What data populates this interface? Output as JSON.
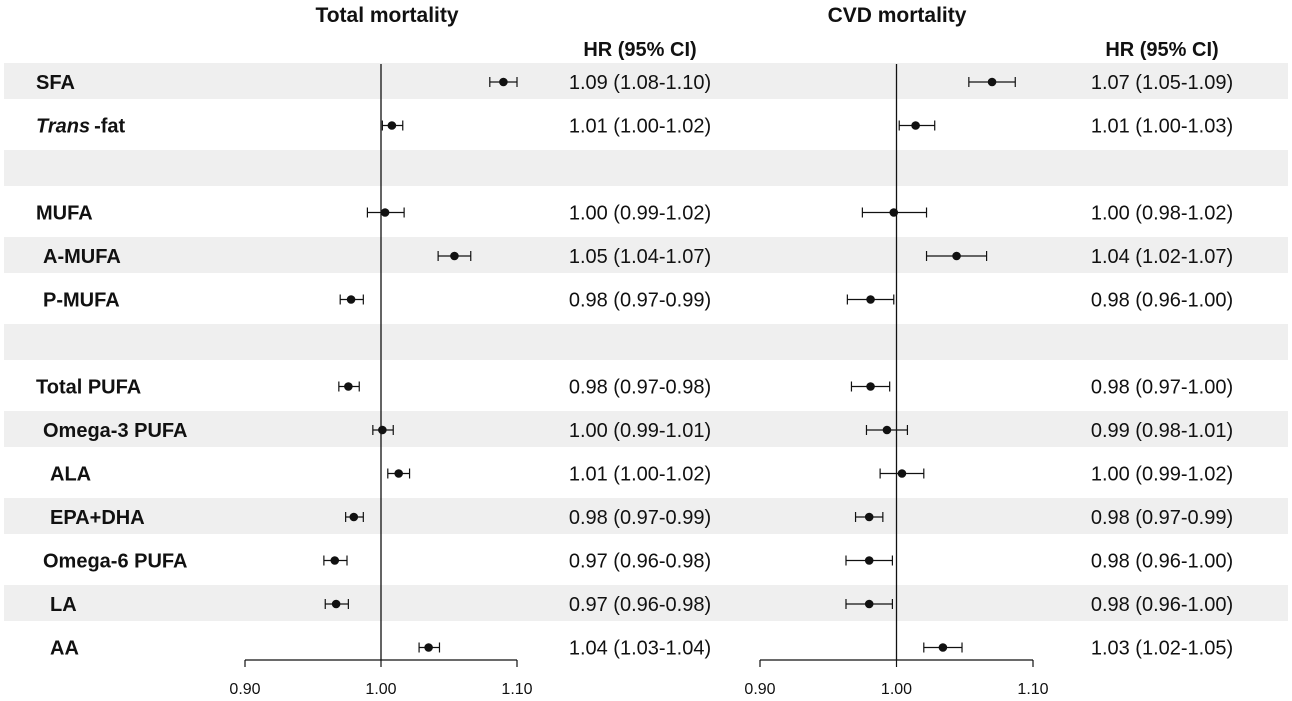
{
  "chart_data": [
    {
      "type": "forest",
      "title": "Total mortality",
      "value_header": "HR (95% CI)",
      "xlim": [
        0.9,
        1.1
      ],
      "xticks": [
        "0.90",
        "1.00",
        "1.10"
      ],
      "reference_line": 1.0,
      "points": [
        {
          "hr": 1.09,
          "lo": 1.08,
          "hi": 1.1,
          "text": "1.09 (1.08-1.10)"
        },
        {
          "hr": 1.008,
          "lo": 1.001,
          "hi": 1.016,
          "text": "1.01 (1.00-1.02)"
        },
        null,
        {
          "hr": 1.003,
          "lo": 0.99,
          "hi": 1.017,
          "text": "1.00 (0.99-1.02)"
        },
        {
          "hr": 1.054,
          "lo": 1.042,
          "hi": 1.066,
          "text": "1.05 (1.04-1.07)"
        },
        {
          "hr": 0.978,
          "lo": 0.97,
          "hi": 0.987,
          "text": "0.98 (0.97-0.99)"
        },
        null,
        {
          "hr": 0.976,
          "lo": 0.969,
          "hi": 0.984,
          "text": "0.98 (0.97-0.98)"
        },
        {
          "hr": 1.001,
          "lo": 0.994,
          "hi": 1.009,
          "text": "1.00 (0.99-1.01)"
        },
        {
          "hr": 1.013,
          "lo": 1.005,
          "hi": 1.021,
          "text": "1.01 (1.00-1.02)"
        },
        {
          "hr": 0.98,
          "lo": 0.974,
          "hi": 0.987,
          "text": "0.98 (0.97-0.99)"
        },
        {
          "hr": 0.966,
          "lo": 0.958,
          "hi": 0.975,
          "text": "0.97 (0.96-0.98)"
        },
        {
          "hr": 0.967,
          "lo": 0.959,
          "hi": 0.976,
          "text": "0.97 (0.96-0.98)"
        },
        {
          "hr": 1.035,
          "lo": 1.028,
          "hi": 1.043,
          "text": "1.04 (1.03-1.04)"
        }
      ]
    },
    {
      "type": "forest",
      "title": "CVD mortality",
      "value_header": "HR (95% CI)",
      "xlim": [
        0.9,
        1.1
      ],
      "xticks": [
        "0.90",
        "1.00",
        "1.10"
      ],
      "reference_line": 1.0,
      "points": [
        {
          "hr": 1.07,
          "lo": 1.053,
          "hi": 1.087,
          "text": "1.07 (1.05-1.09)"
        },
        {
          "hr": 1.014,
          "lo": 1.002,
          "hi": 1.028,
          "text": "1.01 (1.00-1.03)"
        },
        null,
        {
          "hr": 0.998,
          "lo": 0.975,
          "hi": 1.022,
          "text": "1.00 (0.98-1.02)"
        },
        {
          "hr": 1.044,
          "lo": 1.022,
          "hi": 1.066,
          "text": "1.04 (1.02-1.07)"
        },
        {
          "hr": 0.981,
          "lo": 0.964,
          "hi": 0.998,
          "text": "0.98 (0.96-1.00)"
        },
        null,
        {
          "hr": 0.981,
          "lo": 0.967,
          "hi": 0.995,
          "text": "0.98 (0.97-1.00)"
        },
        {
          "hr": 0.993,
          "lo": 0.978,
          "hi": 1.008,
          "text": "0.99 (0.98-1.01)"
        },
        {
          "hr": 1.004,
          "lo": 0.988,
          "hi": 1.02,
          "text": "1.00 (0.99-1.02)"
        },
        {
          "hr": 0.98,
          "lo": 0.97,
          "hi": 0.99,
          "text": "0.98 (0.97-0.99)"
        },
        {
          "hr": 0.98,
          "lo": 0.963,
          "hi": 0.997,
          "text": "0.98 (0.96-1.00)"
        },
        {
          "hr": 0.98,
          "lo": 0.963,
          "hi": 0.997,
          "text": "0.98 (0.96-1.00)"
        },
        {
          "hr": 1.034,
          "lo": 1.02,
          "hi": 1.048,
          "text": "1.03 (1.02-1.05)"
        }
      ]
    }
  ],
  "rows": [
    {
      "label": "SFA",
      "indent": 0
    },
    {
      "label": "Trans",
      "label_suffix": "-fat",
      "indent": 0
    },
    {
      "label": "",
      "indent": 0
    },
    {
      "label": "MUFA",
      "indent": 0
    },
    {
      "label": "A-MUFA",
      "indent": 1
    },
    {
      "label": "P-MUFA",
      "indent": 1
    },
    {
      "label": "",
      "indent": 0
    },
    {
      "label": "Total PUFA",
      "indent": 0
    },
    {
      "label": "Omega-3 PUFA",
      "indent": 1
    },
    {
      "label": "ALA",
      "indent": 2
    },
    {
      "label": "EPA+DHA",
      "indent": 2
    },
    {
      "label": "Omega-6 PUFA",
      "indent": 1
    },
    {
      "label": "LA",
      "indent": 2
    },
    {
      "label": "AA",
      "indent": 2
    }
  ],
  "colors": {
    "stripe": "#efefef",
    "ink": "#111111"
  }
}
